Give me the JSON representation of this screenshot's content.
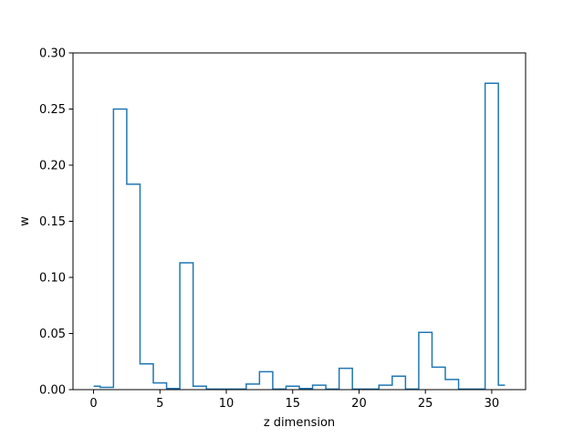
{
  "chart_data": {
    "type": "step",
    "title": "",
    "xlabel": "z dimension",
    "ylabel": "w",
    "xlim": [
      -1.55,
      32.55
    ],
    "ylim": [
      0,
      0.3
    ],
    "x_ticks": [
      0,
      5,
      10,
      15,
      20,
      25,
      30
    ],
    "y_ticks": [
      0.0,
      0.05,
      0.1,
      0.15,
      0.2,
      0.25,
      0.3
    ],
    "y_tick_labels": [
      "0.00",
      "0.05",
      "0.10",
      "0.15",
      "0.20",
      "0.25",
      "0.30"
    ],
    "grid": false,
    "legend": false,
    "colors": {
      "line": "#1f77b4",
      "axes": "#000000",
      "background": "#ffffff"
    },
    "x": [
      0,
      1,
      2,
      3,
      4,
      5,
      6,
      7,
      8,
      9,
      10,
      11,
      12,
      13,
      14,
      15,
      16,
      17,
      18,
      19,
      20,
      21,
      22,
      23,
      24,
      25,
      26,
      27,
      28,
      29,
      30,
      31
    ],
    "values": [
      0.003,
      0.002,
      0.25,
      0.183,
      0.023,
      0.006,
      0.001,
      0.113,
      0.003,
      0.0005,
      0.0005,
      0.0005,
      0.005,
      0.016,
      0.0005,
      0.003,
      0.001,
      0.004,
      0.0005,
      0.019,
      0.0005,
      0.0005,
      0.004,
      0.012,
      0.0005,
      0.051,
      0.02,
      0.009,
      0.0005,
      0.0005,
      0.273,
      0.004
    ]
  }
}
